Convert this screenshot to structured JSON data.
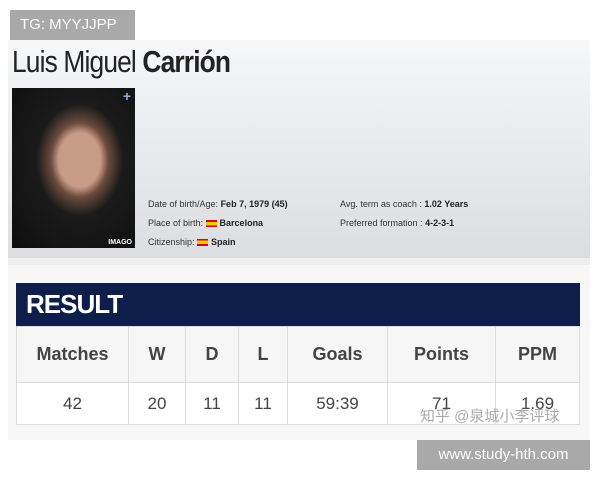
{
  "overlay_tag": "TG: MYYJJPP",
  "coach": {
    "first_name": "Luis Miguel",
    "last_name": "Carrión",
    "photo_credit": "IMAGO",
    "dob_label": "Date of birth/Age:",
    "dob": "Feb 7, 1979 (45)",
    "pob_label": "Place of birth:",
    "pob": "Barcelona",
    "citizenship_label": "Citizenship:",
    "citizenship": "Spain",
    "term_label": "Avg. term as coach :",
    "term": "1.02 Years",
    "formation_label": "Preferred formation :",
    "formation": "4-2-3-1"
  },
  "result": {
    "title": "RESULT",
    "headers": [
      "Matches",
      "W",
      "D",
      "L",
      "Goals",
      "Points",
      "PPM"
    ],
    "values": [
      "42",
      "20",
      "11",
      "11",
      "59:39",
      "71",
      "1.69"
    ]
  },
  "watermark": "知乎 @泉城小李评球",
  "site": "www.study-hth.com",
  "colors": {
    "result_bar": "#0f1d4a"
  }
}
